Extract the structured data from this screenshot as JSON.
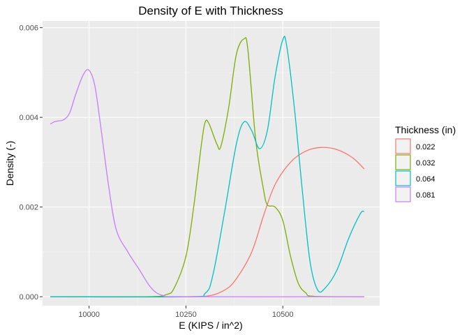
{
  "chart_data": {
    "type": "line",
    "title": "Density of E with Thickness",
    "xlabel": "E (KIPS / in^2)",
    "ylabel": "Density (-)",
    "xlim": [
      9880,
      10750
    ],
    "ylim": [
      -0.0002,
      0.00615
    ],
    "x_ticks": [
      10000,
      10250,
      10500
    ],
    "x_tick_labels": [
      "10000",
      "10250",
      "10500"
    ],
    "y_ticks": [
      0,
      0.002,
      0.004,
      0.006
    ],
    "y_tick_labels": [
      "0.000",
      "0.002",
      "0.004",
      "0.006"
    ],
    "grid": true,
    "legend": {
      "title": "Thickness (in)",
      "position": "right"
    },
    "series": [
      {
        "name": "0.022",
        "color": "#F8766D",
        "points": [
          [
            9900,
            0
          ],
          [
            10200,
            0
          ],
          [
            10300,
            1e-05
          ],
          [
            10350,
            0.00015
          ],
          [
            10380,
            0.0004
          ],
          [
            10420,
            0.001
          ],
          [
            10450,
            0.0018
          ],
          [
            10480,
            0.0025
          ],
          [
            10520,
            0.003
          ],
          [
            10560,
            0.00325
          ],
          [
            10600,
            0.00333
          ],
          [
            10640,
            0.00328
          ],
          [
            10680,
            0.0031
          ],
          [
            10710,
            0.00285
          ]
        ]
      },
      {
        "name": "0.032",
        "color": "#7CAE00",
        "points": [
          [
            9900,
            0
          ],
          [
            10150,
            0
          ],
          [
            10200,
            5e-05
          ],
          [
            10220,
            0.0002
          ],
          [
            10250,
            0.0009
          ],
          [
            10270,
            0.002
          ],
          [
            10290,
            0.0034
          ],
          [
            10300,
            0.0039
          ],
          [
            10310,
            0.00385
          ],
          [
            10330,
            0.0034
          ],
          [
            10340,
            0.00335
          ],
          [
            10360,
            0.0042
          ],
          [
            10380,
            0.0054
          ],
          [
            10400,
            0.00575
          ],
          [
            10410,
            0.0055
          ],
          [
            10430,
            0.0035
          ],
          [
            10450,
            0.0024
          ],
          [
            10460,
            0.00205
          ],
          [
            10480,
            0.002
          ],
          [
            10500,
            0.0017
          ],
          [
            10520,
            0.0009
          ],
          [
            10540,
            0.0003
          ],
          [
            10560,
            8e-05
          ],
          [
            10580,
            1e-05
          ],
          [
            10710,
            0
          ]
        ]
      },
      {
        "name": "0.064",
        "color": "#00BFC4",
        "points": [
          [
            9900,
            0
          ],
          [
            10250,
            0
          ],
          [
            10300,
            8e-05
          ],
          [
            10320,
            0.0005
          ],
          [
            10350,
            0.0019
          ],
          [
            10380,
            0.0034
          ],
          [
            10400,
            0.0039
          ],
          [
            10420,
            0.0037
          ],
          [
            10440,
            0.0033
          ],
          [
            10460,
            0.0037
          ],
          [
            10480,
            0.0049
          ],
          [
            10500,
            0.00573
          ],
          [
            10510,
            0.0056
          ],
          [
            10530,
            0.0042
          ],
          [
            10550,
            0.0024
          ],
          [
            10570,
            0.0008
          ],
          [
            10590,
            0.00015
          ],
          [
            10610,
            0.0002
          ],
          [
            10640,
            0.0006
          ],
          [
            10670,
            0.0013
          ],
          [
            10700,
            0.00185
          ],
          [
            10710,
            0.0019
          ]
        ]
      },
      {
        "name": "0.081",
        "color": "#C77CFF",
        "points": [
          [
            9900,
            0.00385
          ],
          [
            9910,
            0.0039
          ],
          [
            9920,
            0.00392
          ],
          [
            9935,
            0.00395
          ],
          [
            9950,
            0.0041
          ],
          [
            9965,
            0.0045
          ],
          [
            9985,
            0.00495
          ],
          [
            10000,
            0.00505
          ],
          [
            10015,
            0.0047
          ],
          [
            10030,
            0.0038
          ],
          [
            10050,
            0.0025
          ],
          [
            10070,
            0.0015
          ],
          [
            10100,
            0.001
          ],
          [
            10130,
            0.0006
          ],
          [
            10160,
            0.0002
          ],
          [
            10190,
            3e-05
          ],
          [
            10250,
            0
          ],
          [
            10710,
            0
          ]
        ]
      }
    ]
  }
}
